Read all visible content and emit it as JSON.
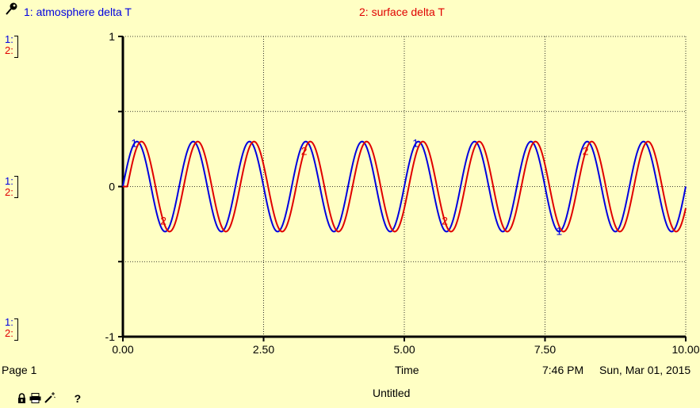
{
  "legend": [
    {
      "label": "1: atmosphere delta T",
      "color": "#0000e0"
    },
    {
      "label": "2: surface delta T",
      "color": "#e00000"
    }
  ],
  "scale_markers": {
    "s1": "1:",
    "s2": "2:"
  },
  "footer": {
    "page": "Page 1",
    "xaxis_label": "Time",
    "time": "7:46 PM",
    "date": "Sun, Mar 01, 2015",
    "doc_title": "Untitled"
  },
  "toolbar": {
    "lock_icon": "lock-icon",
    "print_icon": "printer-icon",
    "wand_icon": "magic-wand-icon",
    "help": "?"
  },
  "chart_data": {
    "type": "line",
    "title": "",
    "xlabel": "Time",
    "ylabel": "",
    "xlim": [
      0,
      10
    ],
    "ylim": [
      -1,
      1
    ],
    "xticks": [
      0,
      2.5,
      5,
      7.5,
      10
    ],
    "xtick_labels": [
      "0.00",
      "2.50",
      "5.00",
      "7.50",
      "10.00"
    ],
    "yticks": [
      1,
      0,
      -1
    ],
    "ytick_labels": [
      "1",
      "0",
      "-1"
    ],
    "grid": true,
    "series": [
      {
        "name": "1: atmosphere delta T",
        "id": "1",
        "color": "#0000e0",
        "amplitude": 0.3,
        "period": 1.0,
        "phase_lag": 0.0,
        "marker_x": [
          0.2,
          5.2,
          7.75
        ]
      },
      {
        "name": "2: surface delta T",
        "id": "2",
        "color": "#e00000",
        "amplitude": 0.3,
        "period": 1.0,
        "phase_lag": 0.08,
        "marker_x": [
          0.72,
          3.22,
          5.72,
          8.22
        ]
      }
    ]
  }
}
